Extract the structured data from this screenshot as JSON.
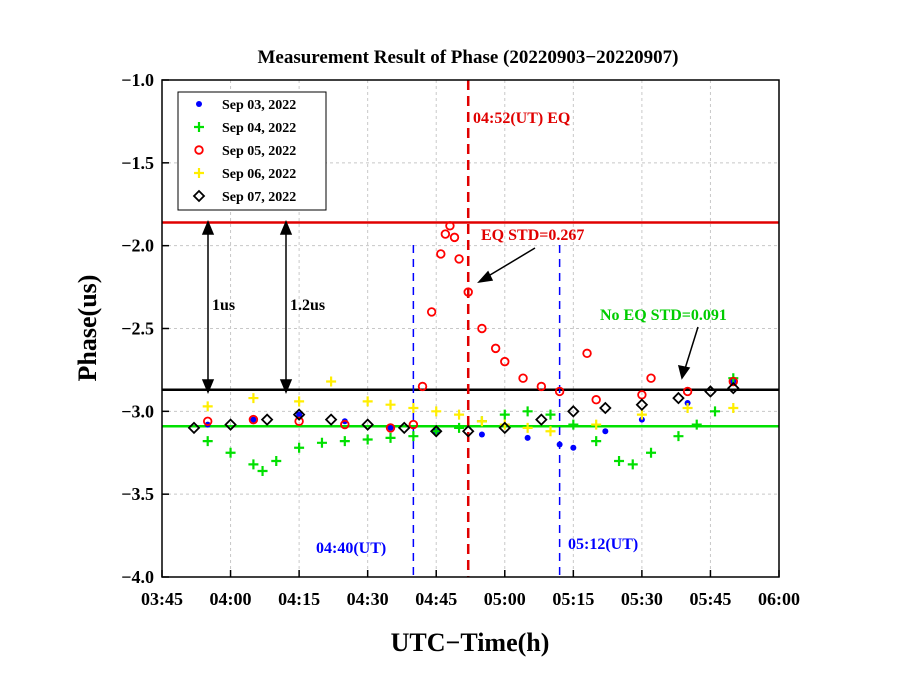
{
  "chart_data": {
    "type": "scatter",
    "title": "Measurement Result of Phase (20220903−20220907)",
    "xlabel": "UTC−Time(h)",
    "ylabel": "Phase(us)",
    "xlim": [
      "03:45",
      "06:00"
    ],
    "ylim": [
      -4.0,
      -1.0
    ],
    "x_ticks": [
      "03:45",
      "04:00",
      "04:15",
      "04:30",
      "04:45",
      "05:00",
      "05:15",
      "05:30",
      "05:45",
      "06:00"
    ],
    "y_ticks": [
      -1.0,
      -1.5,
      -2.0,
      -2.5,
      -3.0,
      -3.5,
      -4.0
    ],
    "y_tick_labels": [
      "−1.0",
      "−1.5",
      "−2.0",
      "−2.5",
      "−3.0",
      "−3.5",
      "−4.0"
    ],
    "grid": true,
    "legend_placement": "top-left",
    "series": [
      {
        "name": "Sep 03, 2022",
        "marker": "dot",
        "color": "#0000ff",
        "points": [
          [
            "03:55",
            -3.08
          ],
          [
            "04:05",
            -3.05
          ],
          [
            "04:15",
            -3.02
          ],
          [
            "04:25",
            -3.06
          ],
          [
            "04:35",
            -3.1
          ],
          [
            "04:45",
            -3.12
          ],
          [
            "04:55",
            -3.14
          ],
          [
            "05:05",
            -3.16
          ],
          [
            "05:12",
            -3.2
          ],
          [
            "05:15",
            -3.22
          ],
          [
            "05:22",
            -3.12
          ],
          [
            "05:30",
            -3.05
          ],
          [
            "05:40",
            -2.95
          ],
          [
            "05:50",
            -2.82
          ]
        ]
      },
      {
        "name": "Sep 04, 2022",
        "marker": "plus",
        "color": "#00e000",
        "points": [
          [
            "03:55",
            -3.18
          ],
          [
            "04:00",
            -3.25
          ],
          [
            "04:05",
            -3.32
          ],
          [
            "04:07",
            -3.36
          ],
          [
            "04:10",
            -3.3
          ],
          [
            "04:15",
            -3.22
          ],
          [
            "04:20",
            -3.19
          ],
          [
            "04:25",
            -3.18
          ],
          [
            "04:30",
            -3.17
          ],
          [
            "04:35",
            -3.16
          ],
          [
            "04:40",
            -3.15
          ],
          [
            "04:45",
            -3.12
          ],
          [
            "04:50",
            -3.1
          ],
          [
            "04:55",
            -3.06
          ],
          [
            "05:00",
            -3.02
          ],
          [
            "05:05",
            -3.0
          ],
          [
            "05:10",
            -3.02
          ],
          [
            "05:15",
            -3.08
          ],
          [
            "05:20",
            -3.18
          ],
          [
            "05:25",
            -3.3
          ],
          [
            "05:28",
            -3.32
          ],
          [
            "05:32",
            -3.25
          ],
          [
            "05:38",
            -3.15
          ],
          [
            "05:42",
            -3.08
          ],
          [
            "05:46",
            -3.0
          ],
          [
            "05:50",
            -2.8
          ]
        ]
      },
      {
        "name": "Sep 05, 2022",
        "marker": "circle",
        "color": "#ff0000",
        "points": [
          [
            "03:55",
            -3.06
          ],
          [
            "04:05",
            -3.05
          ],
          [
            "04:15",
            -3.06
          ],
          [
            "04:25",
            -3.08
          ],
          [
            "04:35",
            -3.1
          ],
          [
            "04:40",
            -3.08
          ],
          [
            "04:42",
            -2.85
          ],
          [
            "04:44",
            -2.4
          ],
          [
            "04:46",
            -2.05
          ],
          [
            "04:47",
            -1.93
          ],
          [
            "04:48",
            -1.88
          ],
          [
            "04:49",
            -1.95
          ],
          [
            "04:50",
            -2.08
          ],
          [
            "04:52",
            -2.28
          ],
          [
            "04:55",
            -2.5
          ],
          [
            "04:58",
            -2.62
          ],
          [
            "05:00",
            -2.7
          ],
          [
            "05:04",
            -2.8
          ],
          [
            "05:08",
            -2.85
          ],
          [
            "05:12",
            -2.88
          ],
          [
            "05:20",
            -2.93
          ],
          [
            "05:30",
            -2.9
          ],
          [
            "05:40",
            -2.88
          ],
          [
            "05:50",
            -2.82
          ],
          [
            "05:18",
            -2.65
          ],
          [
            "05:32",
            -2.8
          ]
        ]
      },
      {
        "name": "Sep 06, 2022",
        "marker": "plus",
        "color": "#ffee00",
        "points": [
          [
            "03:55",
            -2.97
          ],
          [
            "04:05",
            -2.92
          ],
          [
            "04:15",
            -2.94
          ],
          [
            "04:22",
            -2.82
          ],
          [
            "04:30",
            -2.94
          ],
          [
            "04:35",
            -2.96
          ],
          [
            "04:40",
            -2.98
          ],
          [
            "04:45",
            -3.0
          ],
          [
            "04:50",
            -3.02
          ],
          [
            "04:55",
            -3.06
          ],
          [
            "05:00",
            -3.08
          ],
          [
            "05:05",
            -3.1
          ],
          [
            "05:10",
            -3.12
          ],
          [
            "05:20",
            -3.08
          ],
          [
            "05:30",
            -3.02
          ],
          [
            "05:40",
            -2.98
          ],
          [
            "05:50",
            -2.98
          ]
        ]
      },
      {
        "name": "Sep 07, 2022",
        "marker": "diamond",
        "color": "#000000",
        "points": [
          [
            "03:52",
            -3.1
          ],
          [
            "04:00",
            -3.08
          ],
          [
            "04:08",
            -3.05
          ],
          [
            "04:15",
            -3.02
          ],
          [
            "04:22",
            -3.05
          ],
          [
            "04:30",
            -3.08
          ],
          [
            "04:38",
            -3.1
          ],
          [
            "04:45",
            -3.12
          ],
          [
            "04:52",
            -3.12
          ],
          [
            "05:00",
            -3.1
          ],
          [
            "05:08",
            -3.05
          ],
          [
            "05:15",
            -3.0
          ],
          [
            "05:22",
            -2.98
          ],
          [
            "05:30",
            -2.96
          ],
          [
            "05:38",
            -2.92
          ],
          [
            "05:45",
            -2.88
          ],
          [
            "05:50",
            -2.86
          ]
        ]
      }
    ],
    "reference_lines": [
      {
        "type": "horizontal",
        "y": -1.86,
        "color": "#e00000",
        "style": "solid"
      },
      {
        "type": "horizontal",
        "y": -2.87,
        "color": "#000000",
        "style": "solid"
      },
      {
        "type": "horizontal",
        "y": -3.09,
        "color": "#00e000",
        "style": "solid"
      },
      {
        "type": "vertical",
        "x": "04:52",
        "color": "#e00000",
        "style": "dashed"
      },
      {
        "type": "vertical",
        "x": "04:40",
        "color": "#0000ff",
        "style": "dashed"
      },
      {
        "type": "vertical",
        "x": "05:12",
        "color": "#0000ff",
        "style": "dashed"
      }
    ],
    "annotations": [
      {
        "text": "04:52(UT) EQ",
        "color": "#e00000"
      },
      {
        "text": "EQ STD=0.267",
        "color": "#e00000"
      },
      {
        "text": "No EQ STD=0.091",
        "color": "#00e000"
      },
      {
        "text": "04:40(UT)",
        "color": "#0000ff"
      },
      {
        "text": "05:12(UT)",
        "color": "#0000ff"
      },
      {
        "text": "1us",
        "color": "#000000"
      },
      {
        "text": "1.2us",
        "color": "#000000"
      }
    ]
  }
}
